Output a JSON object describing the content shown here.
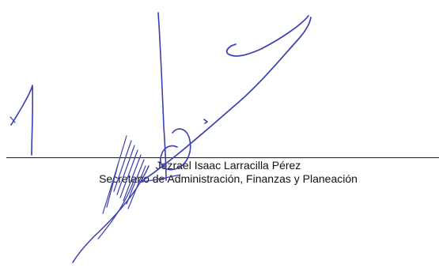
{
  "signer": {
    "name": "Jezrael Isaac Larracilla Pérez",
    "title": "Secretario de Administración, Finanzas y Planeación"
  },
  "colors": {
    "ink": "#3a3fb0",
    "text": "#111111",
    "line": "#1a1a1a"
  }
}
